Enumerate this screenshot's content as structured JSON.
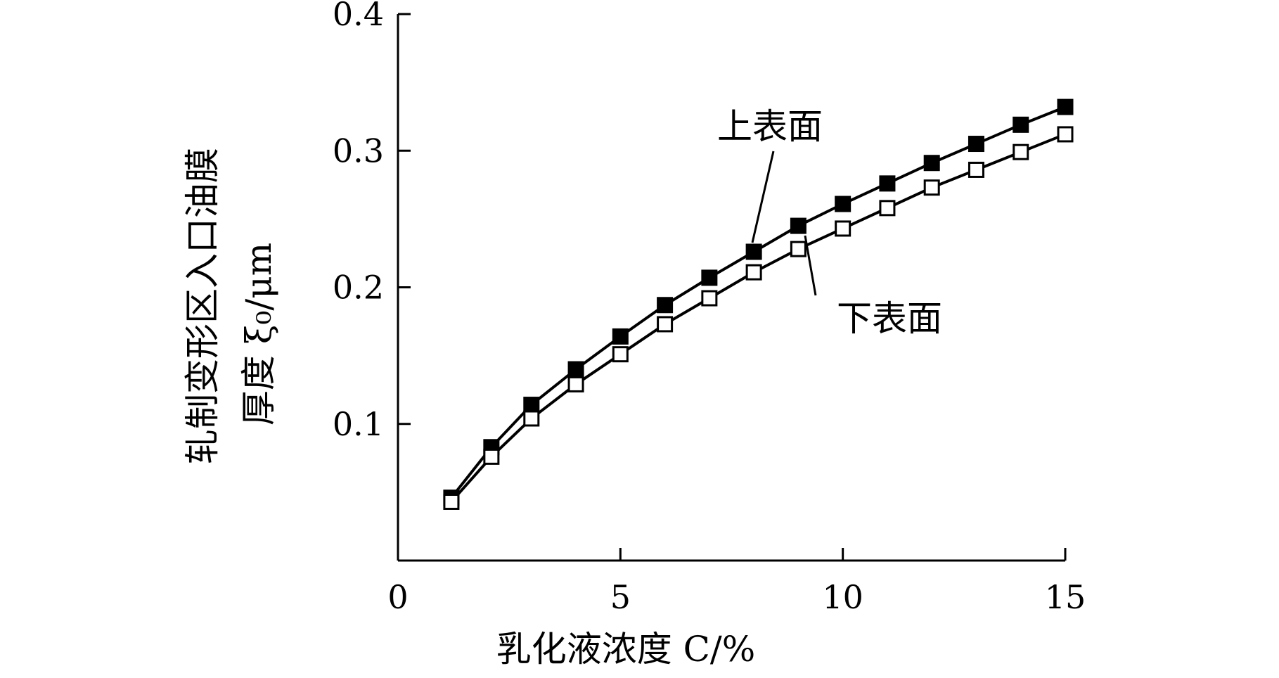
{
  "chart_data": {
    "type": "line",
    "title": "",
    "xlabel": "乳化液浓度 C/%",
    "ylabel_line1": "轧制变形区入口油膜",
    "ylabel_line2": "厚度 ξ₀/μm",
    "xlim": [
      0,
      15
    ],
    "ylim": [
      0,
      0.4
    ],
    "x_ticks": [
      0,
      5,
      10,
      15
    ],
    "x_tick_labels": [
      "0",
      "5",
      "10",
      "15"
    ],
    "y_ticks": [
      0.1,
      0.2,
      0.3,
      0.4
    ],
    "y_tick_labels": [
      "0.1",
      "0.2",
      "0.3",
      "0.4"
    ],
    "grid": false,
    "x": [
      1.2,
      2.1,
      3.0,
      4.0,
      5.0,
      6.0,
      7.0,
      8.0,
      9.0,
      10.0,
      11.0,
      12.0,
      13.0,
      14.0,
      15.0
    ],
    "series": [
      {
        "name": "上表面",
        "marker": "filled-square",
        "color": "#000000",
        "values": [
          0.046,
          0.083,
          0.114,
          0.14,
          0.164,
          0.187,
          0.207,
          0.226,
          0.245,
          0.261,
          0.276,
          0.291,
          0.305,
          0.319,
          0.332
        ]
      },
      {
        "name": "下表面",
        "marker": "open-square",
        "color": "#000000",
        "values": [
          0.043,
          0.076,
          0.104,
          0.129,
          0.151,
          0.173,
          0.192,
          0.211,
          0.228,
          0.243,
          0.258,
          0.273,
          0.286,
          0.299,
          0.312
        ]
      }
    ],
    "annotations": [
      {
        "text": "上表面",
        "series": "上表面"
      },
      {
        "text": "下表面",
        "series": "下表面"
      }
    ]
  }
}
